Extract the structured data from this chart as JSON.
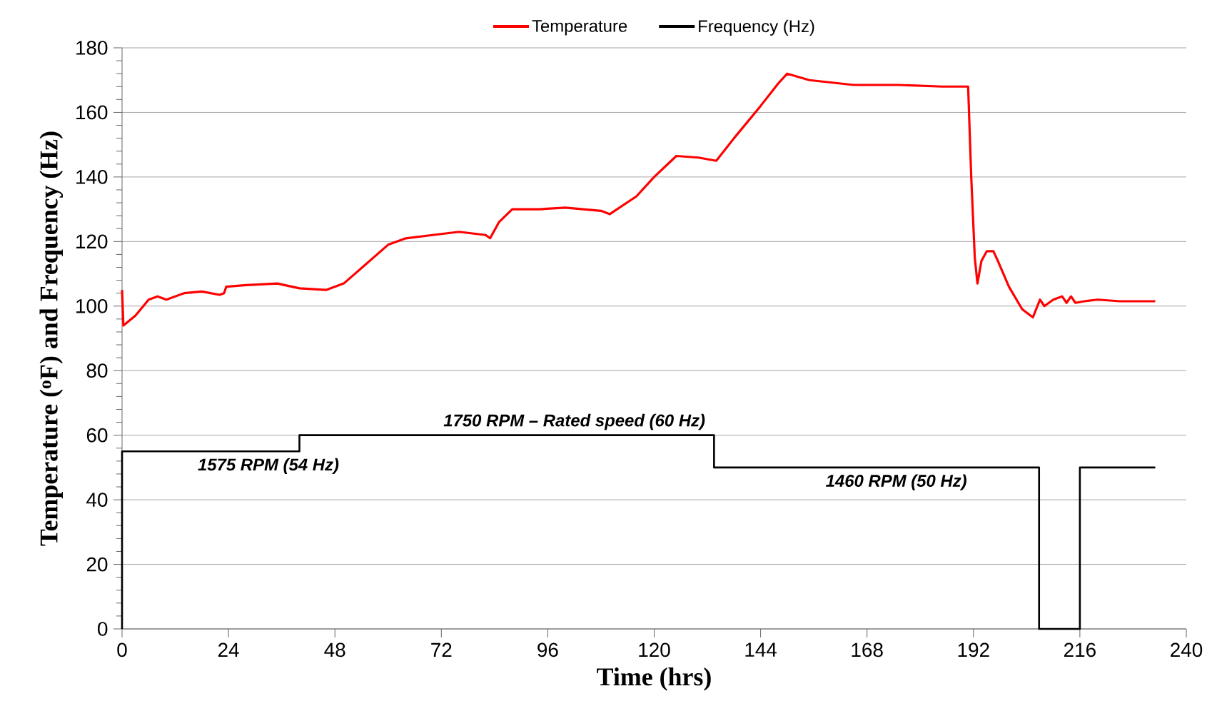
{
  "chart_data": {
    "type": "line",
    "xlabel": "Time (hrs)",
    "ylabel": "Temperature ($^{o}$F) and Frequency (Hz)",
    "xlim": [
      0,
      240
    ],
    "xticks": [
      0,
      24,
      48,
      72,
      96,
      120,
      144,
      168,
      192,
      216,
      240
    ],
    "ylim": [
      0,
      180
    ],
    "yticks": [
      0,
      20,
      40,
      60,
      80,
      100,
      120,
      140,
      160,
      180
    ],
    "grid": "y",
    "legend": "top",
    "marker": "none",
    "line_style": "solid",
    "series": [
      {
        "name": "Temperature",
        "color": "#ff0000",
        "x": [
          0,
          0.3,
          3,
          6,
          8,
          10,
          14,
          18,
          22,
          23,
          23.5,
          28,
          35,
          40,
          46,
          50,
          55,
          60,
          64,
          70,
          76,
          82,
          83,
          85,
          88,
          94,
          100,
          108,
          110,
          116,
          120,
          125,
          130,
          134,
          138,
          144,
          148,
          150,
          155,
          165,
          175,
          185,
          190,
          190.8,
          191.5,
          192.3,
          192.9,
          193.8,
          195,
          196.5,
          197.5,
          200,
          203,
          205.4,
          207,
          208,
          210,
          212,
          213,
          214,
          215,
          217,
          220,
          225,
          230,
          233
        ],
        "values": [
          105,
          94,
          97,
          102,
          103,
          102,
          104,
          104.5,
          103.5,
          104,
          106,
          106.5,
          107,
          105.5,
          105,
          107,
          113,
          119,
          121,
          122,
          123,
          122,
          121,
          126,
          130,
          130,
          130.5,
          129.5,
          128.5,
          134,
          140,
          146.5,
          146,
          145,
          152,
          162,
          169,
          172,
          170,
          168.5,
          168.5,
          168,
          168,
          168,
          140,
          115,
          107,
          114,
          117,
          117,
          114,
          106,
          99,
          96.5,
          102,
          100,
          102,
          103,
          101,
          103,
          101,
          101.5,
          102,
          101.5,
          101.5,
          101.5
        ]
      },
      {
        "name": "Frequency (Hz)",
        "color": "#000000",
        "type": "step",
        "x": [
          0,
          0,
          40,
          133.5,
          206.8,
          216,
          233
        ],
        "values": [
          0,
          55,
          60,
          50,
          0,
          50,
          50
        ]
      }
    ],
    "annotations": [
      {
        "text": "1750 RPM – Rated speed (60 Hz)",
        "x": 102,
        "y": 60
      },
      {
        "text": "1575 RPM (54 Hz)",
        "x": 33,
        "y": 55
      },
      {
        "text": "1460 RPM (50 Hz)",
        "x": 174.6,
        "y": 50
      }
    ]
  }
}
